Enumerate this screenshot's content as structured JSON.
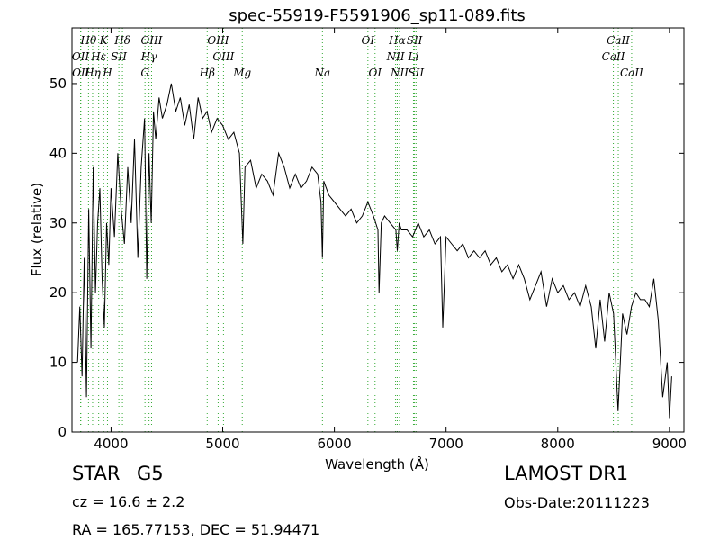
{
  "chart_data": {
    "type": "line",
    "title": "spec-55919-F5591906_sp11-089.fits",
    "xlabel": "Wavelength (Å)",
    "ylabel": "Flux (relative)",
    "xlim": [
      3650,
      9130
    ],
    "ylim": [
      0,
      58
    ],
    "xticks": [
      4000,
      5000,
      6000,
      7000,
      8000,
      9000
    ],
    "xtick_labels": [
      "4000",
      "5000",
      "6000",
      "7000",
      "8000",
      "9000"
    ],
    "yticks": [
      0,
      10,
      20,
      30,
      40,
      50
    ],
    "ytick_labels": [
      "0",
      "10",
      "20",
      "30",
      "40",
      "50"
    ],
    "grid": false,
    "line_color": "#000000",
    "marker_color": "#33aa33",
    "series": [
      {
        "x": [
          3700,
          3720,
          3740,
          3760,
          3780,
          3800,
          3820,
          3840,
          3860,
          3880,
          3900,
          3920,
          3940,
          3960,
          3980,
          4000,
          4030,
          4060,
          4090,
          4120,
          4150,
          4180,
          4210,
          4240,
          4270,
          4300,
          4320,
          4340,
          4360,
          4380,
          4400,
          4430,
          4460,
          4500,
          4540,
          4580,
          4620,
          4660,
          4700,
          4740,
          4780,
          4820,
          4860,
          4900,
          4950,
          5000,
          5050,
          5100,
          5150,
          5180,
          5200,
          5250,
          5300,
          5350,
          5400,
          5450,
          5500,
          5550,
          5600,
          5650,
          5700,
          5750,
          5800,
          5850,
          5880,
          5893,
          5905,
          5950,
          6000,
          6050,
          6100,
          6150,
          6200,
          6250,
          6300,
          6350,
          6390,
          6400,
          6420,
          6450,
          6500,
          6550,
          6563,
          6580,
          6600,
          6650,
          6700,
          6750,
          6800,
          6850,
          6900,
          6950,
          6970,
          7000,
          7050,
          7100,
          7150,
          7200,
          7250,
          7300,
          7350,
          7400,
          7450,
          7500,
          7550,
          7600,
          7650,
          7700,
          7750,
          7800,
          7850,
          7900,
          7950,
          8000,
          8050,
          8100,
          8150,
          8200,
          8250,
          8300,
          8340,
          8380,
          8420,
          8460,
          8500,
          8540,
          8580,
          8620,
          8660,
          8700,
          8740,
          8780,
          8820,
          8860,
          8900,
          8940,
          8980,
          9000,
          9020
        ],
        "y": [
          10,
          18,
          8,
          25,
          5,
          32,
          12,
          38,
          20,
          30,
          35,
          22,
          15,
          30,
          24,
          35,
          28,
          40,
          32,
          27,
          38,
          30,
          42,
          25,
          38,
          45,
          22,
          40,
          30,
          46,
          42,
          48,
          45,
          47,
          50,
          46,
          48,
          44,
          47,
          42,
          48,
          45,
          46,
          43,
          45,
          44,
          42,
          43,
          40,
          27,
          38,
          39,
          35,
          37,
          36,
          34,
          40,
          38,
          35,
          37,
          35,
          36,
          38,
          37,
          33,
          25,
          36,
          34,
          33,
          32,
          31,
          32,
          30,
          31,
          33,
          31,
          29,
          20,
          30,
          31,
          30,
          29,
          26,
          30,
          29,
          29,
          28,
          30,
          28,
          29,
          27,
          28,
          15,
          28,
          27,
          26,
          27,
          25,
          26,
          25,
          26,
          24,
          25,
          23,
          24,
          22,
          24,
          22,
          19,
          21,
          23,
          18,
          22,
          20,
          21,
          19,
          20,
          18,
          21,
          18,
          12,
          19,
          13,
          20,
          17,
          3,
          17,
          14,
          18,
          20,
          19,
          19,
          18,
          22,
          16,
          5,
          10,
          2,
          8
        ]
      }
    ],
    "line_markers": [
      {
        "label": "Hθ",
        "x": 3798,
        "row": 0
      },
      {
        "label": "K",
        "x": 3934,
        "row": 0
      },
      {
        "label": "Hδ",
        "x": 4102,
        "row": 0
      },
      {
        "label": "OIII",
        "x": 4363,
        "row": 0
      },
      {
        "label": "OIII",
        "x": 4959,
        "row": 0
      },
      {
        "label": "OI",
        "x": 6300,
        "row": 0
      },
      {
        "label": "Hα",
        "x": 6563,
        "row": 0
      },
      {
        "label": "SII",
        "x": 6717,
        "row": 0
      },
      {
        "label": "CaII",
        "x": 8542,
        "row": 0
      },
      {
        "label": "OII",
        "x": 3727,
        "row": 1
      },
      {
        "label": "Hε",
        "x": 3889,
        "row": 1
      },
      {
        "label": "SII",
        "x": 4070,
        "row": 1
      },
      {
        "label": "Hγ",
        "x": 4340,
        "row": 1
      },
      {
        "label": "OIII",
        "x": 5007,
        "row": 1
      },
      {
        "label": "NII",
        "x": 6548,
        "row": 1
      },
      {
        "label": "Li",
        "x": 6708,
        "row": 1
      },
      {
        "label": "CaII",
        "x": 8498,
        "row": 1
      },
      {
        "label": "OII",
        "x": 3729,
        "row": 2
      },
      {
        "label": "Hη",
        "x": 3835,
        "row": 2
      },
      {
        "label": "H",
        "x": 3968,
        "row": 2
      },
      {
        "label": "G",
        "x": 4304,
        "row": 2
      },
      {
        "label": "Hβ",
        "x": 4861,
        "row": 2
      },
      {
        "label": "Mg",
        "x": 5175,
        "row": 2
      },
      {
        "label": "Na",
        "x": 5893,
        "row": 2
      },
      {
        "label": "OI",
        "x": 6364,
        "row": 2
      },
      {
        "label": "NII",
        "x": 6583,
        "row": 2
      },
      {
        "label": "SII",
        "x": 6731,
        "row": 2
      },
      {
        "label": "CaII",
        "x": 8662,
        "row": 2
      }
    ]
  },
  "info": {
    "class": "STAR",
    "subclass": "G5",
    "survey": "LAMOST DR1",
    "cz": "cz = 16.6 ± 2.2",
    "obs_date": "Obs-Date:20111223",
    "radec": "RA = 165.77153, DEC = 51.94471"
  }
}
